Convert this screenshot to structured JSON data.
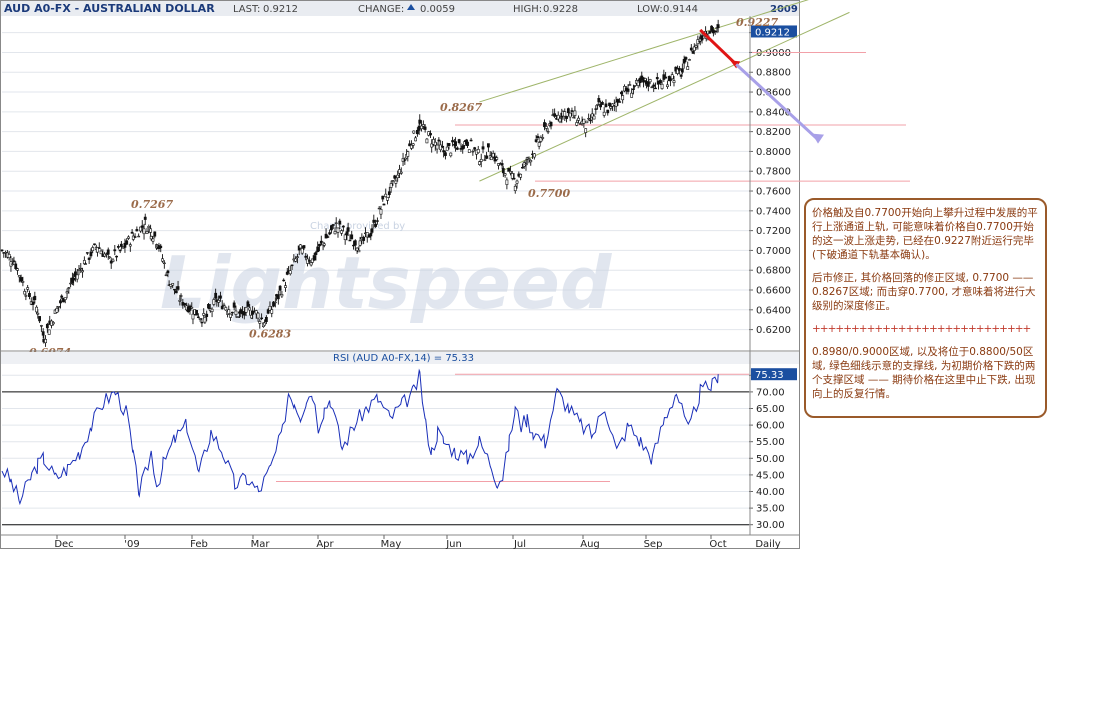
{
  "header": {
    "title": "AUD A0-FX - AUSTRALIAN DOLLAR",
    "last_label": "LAST:",
    "last_value": "0.9212",
    "change_label": "CHANGE:",
    "change_value": "0.0059",
    "high_label": "HIGH:",
    "high_value": "0.9228",
    "low_label": "LOW:",
    "low_value": "0.9144",
    "year": "2009"
  },
  "watermark": {
    "brand": "Lightspeed",
    "charts_by": "Charts provided by"
  },
  "annotations": {
    "peak_0_9227": "0.9227",
    "high_0_8267": "0.8267",
    "high_0_7267": "0.7267",
    "low_0_7700": "0.7700",
    "low_0_6283": "0.6283",
    "low_0_6074": "0.6074",
    "price_current": "0.9212",
    "rsi_current": "75.33"
  },
  "rsi": {
    "title": "RSI (AUD A0-FX,14) = 75.33"
  },
  "note": {
    "para1": "价格触及自0.7700开始向上攀升过程中发展的平行上涨通道上轨, 可能意味着价格自0.7700开始的这一波上涨走势, 已经在0.9227附近运行完毕(下破通道下轨基本确认)。",
    "para2": "后市修正, 其价格回落的修正区域, 0.7700 —— 0.8267区域; 而击穿0.7700, 才意味着将进行大级别的深度修正。",
    "separator": "++++++++++++++++++++++++++++",
    "para3": "0.8980/0.9000区域, 以及将位于0.8800/50区域, 绿色细线示意的支撑线, 为初期价格下跌的两个支撑区域 —— 期待价格在这里中止下跌, 出现向上的反复行情。"
  },
  "chart_data": {
    "type": "line",
    "frequency": "Daily",
    "price_axis": {
      "ylim": [
        0.6074,
        0.9228
      ],
      "ticks": [
        "0.6200",
        "0.6400",
        "0.6600",
        "0.6800",
        "0.7000",
        "0.7200",
        "0.7400",
        "0.7600",
        "0.7800",
        "0.8000",
        "0.8200",
        "0.8400",
        "0.8600",
        "0.8800",
        "0.9000",
        "0.9200"
      ]
    },
    "rsi_axis": {
      "ylim": [
        30,
        77
      ],
      "ticks": [
        "30.00",
        "35.00",
        "40.00",
        "45.00",
        "50.00",
        "55.00",
        "60.00",
        "65.00",
        "70.00",
        "75.00"
      ]
    },
    "x_labels": [
      "Dec",
      "'09",
      "Feb",
      "Mar",
      "Apr",
      "May",
      "Jun",
      "Jul",
      "Aug",
      "Sep",
      "Oct",
      "Daily"
    ],
    "series": [
      {
        "type": "price",
        "x": [
          0,
          4,
          8,
          12,
          14,
          16,
          20,
          24,
          28,
          32,
          36,
          40,
          44,
          48,
          50,
          52,
          56,
          60,
          64,
          68,
          72,
          76,
          80,
          84,
          88,
          92,
          96,
          100,
          104,
          108,
          112,
          116,
          120,
          124,
          128,
          132,
          136,
          138,
          140,
          144,
          148,
          152,
          156,
          160,
          164,
          168,
          172,
          176,
          180,
          184,
          188,
          192,
          196,
          200,
          204,
          208,
          212,
          216,
          220,
          224,
          228,
          232,
          234,
          236,
          240
        ],
        "values": [
          0.7,
          0.69,
          0.66,
          0.64,
          0.612,
          0.625,
          0.65,
          0.67,
          0.69,
          0.705,
          0.69,
          0.7,
          0.715,
          0.727,
          0.72,
          0.71,
          0.67,
          0.65,
          0.64,
          0.63,
          0.65,
          0.642,
          0.634,
          0.64,
          0.628,
          0.65,
          0.675,
          0.7,
          0.69,
          0.71,
          0.725,
          0.715,
          0.705,
          0.72,
          0.75,
          0.77,
          0.8,
          0.815,
          0.826,
          0.812,
          0.8,
          0.805,
          0.81,
          0.795,
          0.8,
          0.78,
          0.77,
          0.79,
          0.81,
          0.83,
          0.84,
          0.835,
          0.825,
          0.845,
          0.842,
          0.86,
          0.865,
          0.87,
          0.868,
          0.875,
          0.88,
          0.905,
          0.915,
          0.9227,
          0.9212
        ]
      },
      {
        "type": "rsi",
        "x": [
          0,
          3,
          6,
          10,
          12,
          14,
          18,
          22,
          26,
          30,
          34,
          38,
          42,
          44,
          46,
          48,
          50,
          52,
          54,
          58,
          62,
          66,
          70,
          74,
          78,
          82,
          86,
          90,
          94,
          96,
          98,
          100,
          102,
          104,
          106,
          108,
          110,
          114,
          118,
          122,
          126,
          130,
          134,
          138,
          140,
          142,
          144,
          146,
          148,
          152,
          156,
          160,
          164,
          166,
          168,
          170,
          172,
          174,
          176,
          178,
          182,
          186,
          190,
          194,
          198,
          202,
          206,
          210,
          214,
          218,
          222,
          226,
          230,
          234,
          238,
          240
        ],
        "values": [
          47,
          43,
          37,
          45,
          48,
          50,
          44,
          47,
          52,
          60,
          67,
          70,
          63,
          50,
          40,
          45,
          52,
          42,
          48,
          56,
          60,
          45,
          58,
          52,
          42,
          44,
          40,
          47,
          58,
          70,
          67,
          63,
          68,
          70,
          60,
          65,
          68,
          53,
          60,
          65,
          68,
          62,
          66,
          70,
          75,
          60,
          52,
          58,
          55,
          52,
          50,
          55,
          48,
          43,
          45,
          55,
          65,
          60,
          62,
          58,
          55,
          70,
          65,
          60,
          57,
          66,
          52,
          60,
          55,
          50,
          62,
          70,
          58,
          70,
          72,
          75.33
        ]
      }
    ],
    "channel": {
      "upper": [
        [
          160,
          0.85
        ],
        [
          240,
          0.925
        ]
      ],
      "lower": [
        [
          160,
          0.77
        ],
        [
          240,
          0.88
        ]
      ]
    },
    "resistance_lines": [
      0.9,
      0.8267,
      0.77
    ],
    "rsi_lines": [
      75.33,
      70,
      43
    ],
    "projection": [
      [
        234,
        0.9227
      ],
      [
        240,
        0.89
      ],
      [
        248,
        0.82
      ]
    ]
  }
}
